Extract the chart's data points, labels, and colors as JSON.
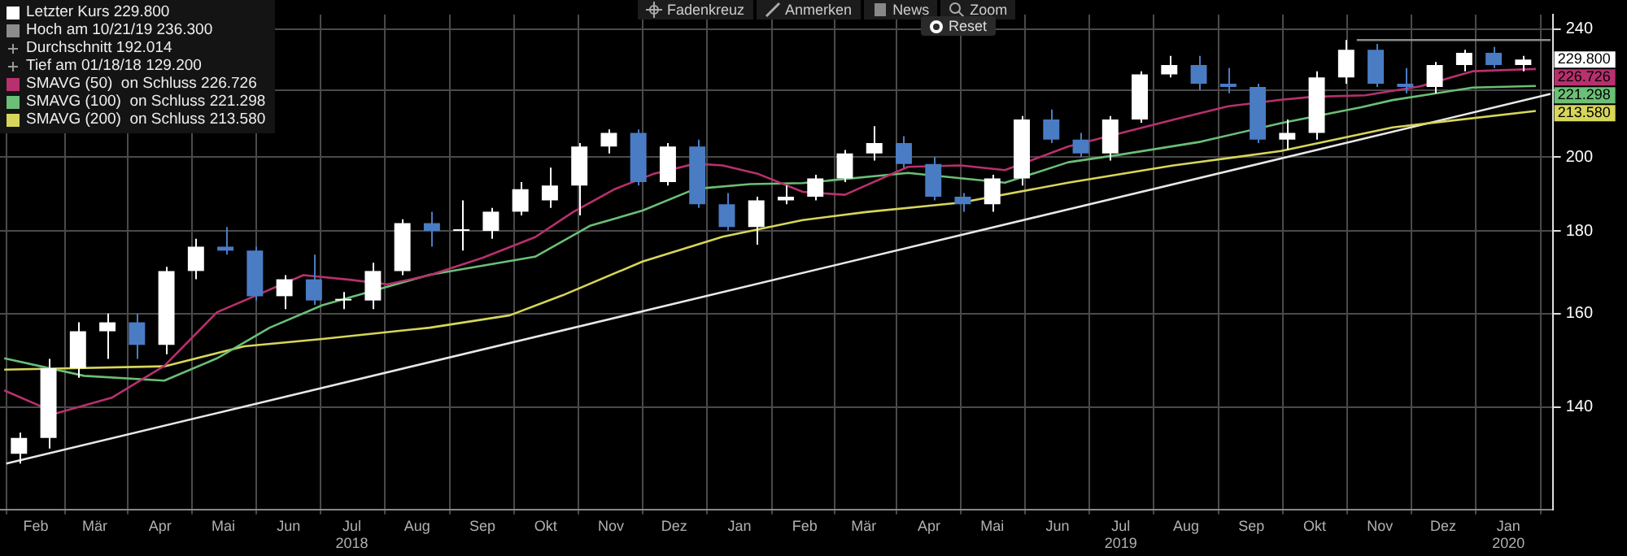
{
  "chart_data": {
    "type": "candlestick",
    "log": true,
    "grid": true,
    "legend": "top left",
    "marker": "none",
    "line_style": "solid",
    "xlim": [
      "2018-01-15",
      "2020-01-22"
    ],
    "ylim": [
      121,
      245
    ],
    "xticks": [
      {
        "value": "2018-02-01",
        "label": "Feb"
      },
      {
        "value": "2018-03-01",
        "label": "Mär"
      },
      {
        "value": "2018-04-01",
        "label": "Apr"
      },
      {
        "value": "2018-05-01",
        "label": "Mai"
      },
      {
        "value": "2018-06-01",
        "label": "Jun"
      },
      {
        "value": "2018-07-01",
        "label": "Jul\n2018"
      },
      {
        "value": "2018-08-01",
        "label": "Aug"
      },
      {
        "value": "2018-09-01",
        "label": "Sep"
      },
      {
        "value": "2018-10-01",
        "label": "Okt"
      },
      {
        "value": "2018-11-01",
        "label": "Nov"
      },
      {
        "value": "2018-12-01",
        "label": "Dez"
      },
      {
        "value": "2019-01-01",
        "label": "Jan"
      },
      {
        "value": "2019-02-01",
        "label": "Feb"
      },
      {
        "value": "2019-03-01",
        "label": "Mär"
      },
      {
        "value": "2019-04-01",
        "label": "Apr"
      },
      {
        "value": "2019-05-01",
        "label": "Mai"
      },
      {
        "value": "2019-06-01",
        "label": "Jun"
      },
      {
        "value": "2019-07-01",
        "label": "Jul\n2019"
      },
      {
        "value": "2019-08-01",
        "label": "Aug"
      },
      {
        "value": "2019-09-01",
        "label": "Sep"
      },
      {
        "value": "2019-10-01",
        "label": "Okt"
      },
      {
        "value": "2019-11-01",
        "label": "Nov"
      },
      {
        "value": "2019-12-01",
        "label": "Dez"
      },
      {
        "value": "2020-01-01",
        "label": "Jan\n2020"
      }
    ],
    "yticks": [
      140,
      160,
      180,
      200,
      {
        "value": 220,
        "label": null
      },
      240
    ],
    "annotations": [
      "Durchschnitt 192.014",
      "Tief am 01/18/18 129.200",
      "Fadenkreuz",
      "Anmerken",
      "News",
      "Zoom",
      "Reset"
    ],
    "series": [
      {
        "name": "Letzter Kurs 229.800",
        "color": "#ffffff",
        "x": [
          "2018-01-24",
          "2018-02-07",
          "2018-02-21",
          "2018-03-07",
          "2018-03-21",
          "2018-04-04",
          "2018-04-18",
          "2018-05-02",
          "2018-05-16",
          "2018-05-30",
          "2018-06-13",
          "2018-06-27",
          "2018-07-11",
          "2018-07-25",
          "2018-08-08",
          "2018-08-22",
          "2018-09-05",
          "2018-09-19",
          "2018-10-03",
          "2018-10-17",
          "2018-10-31",
          "2018-11-14",
          "2018-11-28",
          "2018-12-12",
          "2018-12-26",
          "2019-01-09",
          "2019-01-23",
          "2019-02-06",
          "2019-02-20",
          "2019-03-06",
          "2019-03-20",
          "2019-04-03",
          "2019-04-17",
          "2019-05-01",
          "2019-05-15",
          "2019-05-29",
          "2019-06-12",
          "2019-06-26",
          "2019-07-10",
          "2019-07-24",
          "2019-08-07",
          "2019-08-21",
          "2019-09-04",
          "2019-09-18",
          "2019-10-02",
          "2019-10-16",
          "2019-10-30",
          "2019-11-13",
          "2019-11-27",
          "2019-12-11",
          "2019-12-25",
          "2020-01-08"
        ],
        "ohlc": [
          [
            131,
            135,
            129.2,
            134
          ],
          [
            134,
            150,
            132,
            148
          ],
          [
            148,
            158,
            146,
            156
          ],
          [
            156,
            160,
            150,
            158
          ],
          [
            158,
            160,
            150,
            153
          ],
          [
            153,
            171,
            151,
            170
          ],
          [
            170,
            178,
            168,
            176
          ],
          [
            176,
            181,
            174,
            175
          ],
          [
            175,
            176,
            163,
            164
          ],
          [
            164,
            169,
            161,
            168
          ],
          [
            168,
            174,
            162,
            163
          ],
          [
            163,
            165,
            161,
            163
          ],
          [
            163,
            172,
            161,
            170
          ],
          [
            170,
            183,
            169,
            182
          ],
          [
            182,
            185,
            176,
            180
          ],
          [
            180,
            188,
            175,
            180
          ],
          [
            180,
            186,
            178,
            185
          ],
          [
            185,
            193,
            184,
            191
          ],
          [
            188,
            197,
            186,
            192
          ],
          [
            192,
            204,
            184,
            203
          ],
          [
            203,
            208,
            201,
            207
          ],
          [
            207,
            208,
            192,
            193
          ],
          [
            193,
            204,
            192,
            203
          ],
          [
            203,
            205,
            186,
            187
          ],
          [
            187,
            190,
            180,
            181
          ],
          [
            181,
            189,
            176.5,
            188
          ],
          [
            188,
            192,
            187,
            189
          ],
          [
            189,
            195,
            188,
            194
          ],
          [
            194,
            202,
            193,
            201
          ],
          [
            201,
            209,
            199,
            204
          ],
          [
            204,
            206,
            197,
            198
          ],
          [
            198,
            200,
            188,
            189
          ],
          [
            189,
            190,
            185,
            187
          ],
          [
            187,
            195,
            185,
            194
          ],
          [
            194,
            212,
            192,
            211
          ],
          [
            211,
            214,
            204,
            205
          ],
          [
            205,
            207,
            200,
            201
          ],
          [
            201,
            212,
            199,
            211
          ],
          [
            211,
            226,
            210,
            225
          ],
          [
            225,
            231,
            224,
            228
          ],
          [
            228,
            231,
            220,
            222
          ],
          [
            222,
            227,
            219,
            221
          ],
          [
            221,
            222,
            204,
            205
          ],
          [
            205,
            211,
            202,
            207
          ],
          [
            207,
            226,
            205,
            224
          ],
          [
            224,
            236.3,
            222,
            233
          ],
          [
            233,
            235,
            221,
            222
          ],
          [
            222,
            227,
            219,
            221
          ],
          [
            221,
            229,
            219,
            228
          ],
          [
            228,
            233,
            226,
            232
          ],
          [
            232,
            234,
            227,
            228
          ],
          [
            228,
            231,
            226,
            229.8
          ]
        ],
        "colors": [
          "#ffffff",
          "#ffffff",
          "#ffffff",
          "#ffffff",
          "#4a7cc4",
          "#ffffff",
          "#ffffff",
          "#4a7cc4",
          "#4a7cc4",
          "#ffffff",
          "#4a7cc4",
          "#ffffff",
          "#ffffff",
          "#ffffff",
          "#4a7cc4",
          "#ffffff",
          "#ffffff",
          "#ffffff",
          "#ffffff",
          "#ffffff",
          "#ffffff",
          "#4a7cc4",
          "#ffffff",
          "#4a7cc4",
          "#4a7cc4",
          "#ffffff",
          "#ffffff",
          "#ffffff",
          "#ffffff",
          "#ffffff",
          "#4a7cc4",
          "#4a7cc4",
          "#4a7cc4",
          "#ffffff",
          "#ffffff",
          "#4a7cc4",
          "#4a7cc4",
          "#ffffff",
          "#ffffff",
          "#ffffff",
          "#4a7cc4",
          "#4a7cc4",
          "#4a7cc4",
          "#ffffff",
          "#ffffff",
          "#ffffff",
          "#4a7cc4",
          "#4a7cc4",
          "#ffffff",
          "#ffffff",
          "#4a7cc4",
          "#ffffff"
        ],
        "value_labels": [
          null,
          null,
          null,
          null,
          null,
          null,
          null,
          null,
          null,
          null,
          null,
          null,
          null,
          null,
          null,
          null,
          null,
          null,
          null,
          null,
          null,
          null,
          null,
          null,
          null,
          null,
          null,
          null,
          null,
          null,
          null,
          null,
          null,
          null,
          null,
          null,
          null,
          null,
          null,
          null,
          null,
          null,
          null,
          null,
          null,
          null,
          null,
          null,
          null,
          null,
          null,
          "229.800"
        ]
      },
      {
        "type": "line",
        "name": "Hoch am 10/21/19 236.300",
        "color": "#8c8c8c",
        "x": [
          "2019-10-21",
          "2020-01-21"
        ],
        "values": [
          236.3,
          236.3
        ]
      },
      {
        "type": "line",
        "name": "SMAVG (50)  on Schluss 226.726",
        "color": "#b8306e",
        "x": [
          "2018-01-17",
          "2018-02-11",
          "2018-03-09",
          "2018-04-03",
          "2018-04-28",
          "2018-06-08",
          "2018-06-30",
          "2018-07-18",
          "2018-08-07",
          "2018-09-01",
          "2018-09-26",
          "2018-10-14",
          "2018-11-03",
          "2018-11-21",
          "2018-12-11",
          "2018-12-24",
          "2019-01-10",
          "2019-01-31",
          "2019-02-20",
          "2019-03-22",
          "2019-04-16",
          "2019-05-07",
          "2019-06-06",
          "2019-07-26",
          "2019-08-21",
          "2019-09-15",
          "2019-09-30",
          "2019-10-25",
          "2019-11-20",
          "2019-12-15",
          "2020-01-14"
        ],
        "values": [
          143.4,
          138.8,
          141.9,
          148.5,
          160.3,
          169,
          167.9,
          166.8,
          169,
          173.2,
          178.4,
          184.9,
          191.1,
          195.2,
          198.1,
          197.6,
          195.2,
          190.3,
          189.5,
          197.2,
          197.6,
          196.3,
          203,
          210.9,
          215,
          217,
          217.9,
          218.4,
          221.2,
          226,
          226.726
        ],
        "value_labels": [
          null,
          null,
          null,
          null,
          null,
          null,
          null,
          null,
          null,
          null,
          null,
          null,
          null,
          null,
          null,
          null,
          null,
          null,
          null,
          null,
          null,
          null,
          null,
          null,
          null,
          null,
          null,
          null,
          null,
          null,
          "226.726"
        ]
      },
      {
        "type": "line",
        "name": "SMAVG (100)  on Schluss 221.298",
        "color": "#6bbf76",
        "x": [
          "2018-01-17",
          "2018-02-24",
          "2018-04-03",
          "2018-04-28",
          "2018-05-23",
          "2018-06-17",
          "2018-08-07",
          "2018-09-26",
          "2018-10-22",
          "2018-11-16",
          "2018-12-11",
          "2019-01-06",
          "2019-01-31",
          "2019-03-22",
          "2019-05-07",
          "2019-06-06",
          "2019-07-01",
          "2019-08-08",
          "2019-09-15",
          "2019-10-23",
          "2019-11-07",
          "2019-12-15",
          "2020-01-14"
        ],
        "values": [
          150.1,
          146.4,
          145.4,
          150.1,
          156.8,
          161.9,
          169.1,
          173.5,
          181.3,
          185.3,
          191.1,
          192.4,
          192.7,
          195.5,
          192.8,
          198.5,
          200.7,
          204.4,
          209.9,
          214.7,
          216.9,
          220.8,
          221.298
        ],
        "value_labels": [
          null,
          null,
          null,
          null,
          null,
          null,
          null,
          null,
          null,
          null,
          null,
          null,
          null,
          null,
          null,
          null,
          null,
          null,
          null,
          null,
          null,
          null,
          "221.298"
        ]
      },
      {
        "type": "line",
        "name": "SMAVG (200)  on Schluss 213.580",
        "color": "#d6d65a",
        "x": [
          "2018-01-17",
          "2018-04-03",
          "2018-05-11",
          "2018-06-17",
          "2018-08-07",
          "2018-09-14",
          "2018-10-09",
          "2018-11-16",
          "2018-12-24",
          "2019-01-31",
          "2019-03-02",
          "2019-04-16",
          "2019-06-06",
          "2019-07-26",
          "2019-09-15",
          "2019-11-07",
          "2020-01-14"
        ],
        "values": [
          147.7,
          148.4,
          152.7,
          154.3,
          156.8,
          159.6,
          164.2,
          172.3,
          178.5,
          182.8,
          184.9,
          187.4,
          192.8,
          197.6,
          201.7,
          208.6,
          213.58
        ],
        "value_labels": [
          null,
          null,
          null,
          null,
          null,
          null,
          null,
          null,
          null,
          null,
          null,
          null,
          null,
          null,
          null,
          null,
          "213.580"
        ]
      },
      {
        "type": "line",
        "color": "#e8e8e8",
        "x": [
          "2018-01-18",
          "2020-01-21"
        ],
        "values": [
          129.2,
          218.8
        ]
      }
    ]
  }
}
